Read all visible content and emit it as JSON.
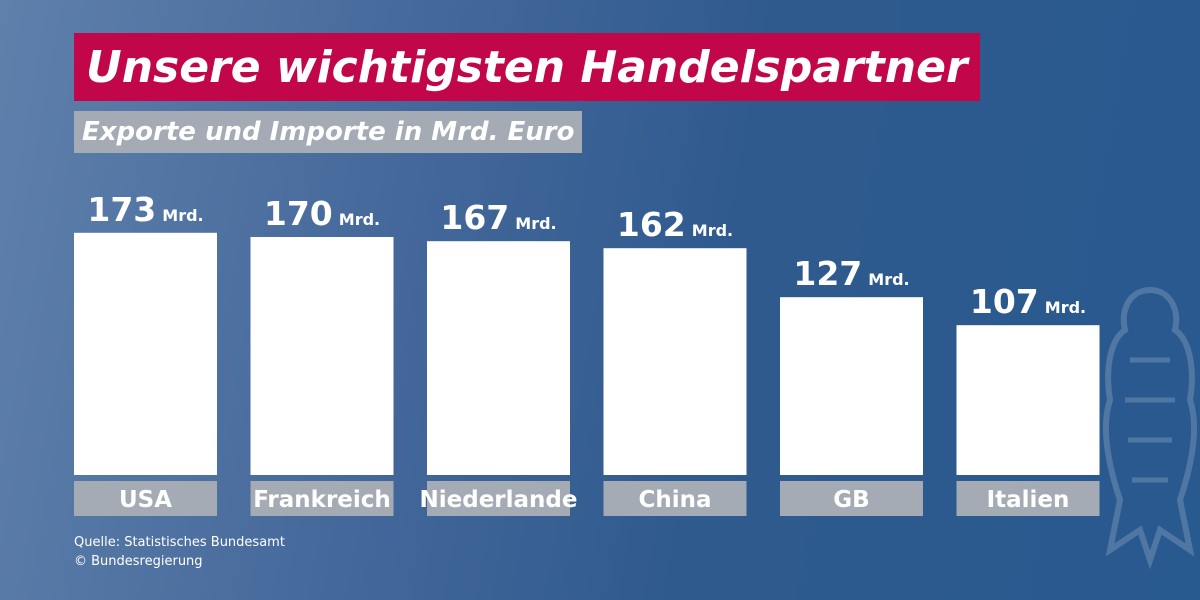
{
  "header": {
    "title": "Unsere wichtigsten Handelspartner",
    "subtitle": "Exporte und Importe in Mrd. Euro"
  },
  "footer": {
    "source": "Quelle: Statistisches Bundesamt",
    "copyright": "© Bundesregierung"
  },
  "colors": {
    "title_background": "#c2064a",
    "label_background": "#a5abb4",
    "bar": "#ffffff",
    "background": "#2f5a8e"
  },
  "icons": {
    "watermark": "eagle-icon"
  },
  "chart_data": {
    "type": "bar",
    "title": "Unsere wichtigsten Handelspartner",
    "subtitle": "Exporte und Importe in Mrd. Euro",
    "categories": [
      "USA",
      "Frankreich",
      "Niederlande",
      "China",
      "GB",
      "Italien"
    ],
    "values": [
      173,
      170,
      167,
      162,
      127,
      107
    ],
    "value_unit": "Mrd.",
    "grid": false,
    "legend": "none"
  }
}
